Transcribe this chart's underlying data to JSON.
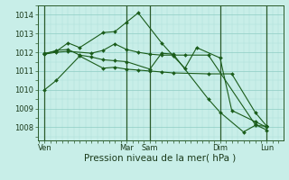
{
  "bg_color": "#c8eee8",
  "grid_major_color": "#8eccc4",
  "grid_minor_color": "#aaddd8",
  "line_color": "#1a5c1a",
  "vline_color": "#2a5a2a",
  "xlabel": "Pression niveau de la mer( hPa )",
  "xlabel_fontsize": 7.5,
  "ylim": [
    1007.3,
    1014.5
  ],
  "yticks": [
    1008,
    1009,
    1010,
    1011,
    1012,
    1013,
    1014
  ],
  "tick_fontsize": 6.0,
  "vline_positions": [
    0.0,
    3.5,
    4.5,
    7.5,
    9.5
  ],
  "xtick_positions": [
    0.0,
    3.5,
    4.5,
    7.5,
    9.5
  ],
  "xtick_labels": [
    "Ven",
    "Mar",
    "Sam",
    "Dim",
    "Lun"
  ],
  "xlim": [
    -0.3,
    10.2
  ],
  "series_x": [
    [
      0.0,
      0.5,
      1.5,
      2.5,
      3.0,
      3.5,
      4.0,
      4.5,
      5.0,
      5.5,
      7.0,
      8.0,
      9.0,
      9.5
    ],
    [
      0.0,
      0.5,
      1.0,
      2.0,
      2.5,
      3.0,
      3.5,
      4.0,
      4.5,
      5.0,
      6.0,
      7.0,
      9.0,
      9.5
    ],
    [
      0.0,
      0.5,
      1.0,
      1.5,
      2.5,
      3.0,
      3.5,
      4.0,
      5.0,
      5.5,
      6.0,
      6.5,
      7.5,
      8.0,
      9.0,
      9.5
    ],
    [
      0.0,
      0.5,
      1.0,
      1.5,
      2.0,
      2.5,
      3.0,
      3.5,
      4.5,
      5.0,
      5.5,
      7.0,
      7.5,
      8.5,
      9.0,
      9.5
    ]
  ],
  "series_y": [
    [
      1010.0,
      1010.5,
      1011.8,
      1011.15,
      1011.2,
      1011.1,
      1011.05,
      1011.0,
      1010.95,
      1010.9,
      1010.85,
      1010.85,
      1008.8,
      1008.05
    ],
    [
      1011.9,
      1012.0,
      1012.05,
      1011.95,
      1012.1,
      1012.45,
      1012.15,
      1012.0,
      1011.9,
      1011.85,
      1011.85,
      1011.85,
      1008.15,
      1007.85
    ],
    [
      1011.95,
      1012.05,
      1012.5,
      1012.25,
      1013.05,
      1013.1,
      1013.6,
      1014.1,
      1012.5,
      1011.8,
      1011.15,
      1012.25,
      1011.7,
      1008.9,
      1008.3,
      1008.0
    ],
    [
      1011.9,
      1012.1,
      1012.15,
      1011.85,
      1011.75,
      1011.6,
      1011.55,
      1011.5,
      1011.1,
      1011.95,
      1011.9,
      1009.5,
      1008.8,
      1007.75,
      1008.1,
      1008.05
    ]
  ]
}
